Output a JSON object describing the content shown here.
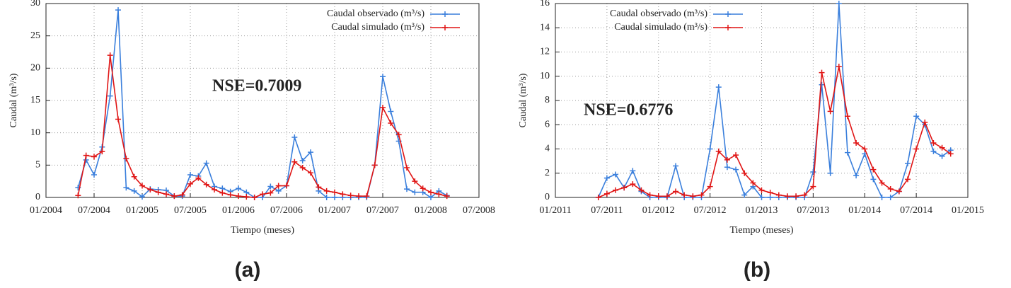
{
  "chart_data": [
    {
      "type": "line",
      "panel_label": "(a)",
      "annotation": "NSE=0.7009",
      "xlabel": "Tiempo (meses)",
      "ylabel": "Caudal (m³/s)",
      "xlim": [
        "01/2004",
        "07/2008"
      ],
      "xticks": [
        "01/2004",
        "07/2004",
        "01/2005",
        "07/2005",
        "01/2006",
        "07/2006",
        "01/2007",
        "07/2007",
        "01/2008",
        "07/2008"
      ],
      "ylim": [
        0,
        30
      ],
      "yticks": [
        0,
        5,
        10,
        15,
        20,
        25,
        30
      ],
      "grid": true,
      "legend": "top-right",
      "x": [
        "05/2004",
        "06/2004",
        "07/2004",
        "08/2004",
        "09/2004",
        "10/2004",
        "11/2004",
        "12/2004",
        "01/2005",
        "02/2005",
        "03/2005",
        "04/2005",
        "05/2005",
        "06/2005",
        "07/2005",
        "08/2005",
        "09/2005",
        "10/2005",
        "11/2005",
        "12/2005",
        "01/2006",
        "02/2006",
        "03/2006",
        "04/2006",
        "05/2006",
        "06/2006",
        "07/2006",
        "08/2006",
        "09/2006",
        "10/2006",
        "11/2006",
        "12/2006",
        "01/2007",
        "02/2007",
        "03/2007",
        "04/2007",
        "05/2007",
        "06/2007",
        "07/2007",
        "08/2007",
        "09/2007",
        "10/2007",
        "11/2007",
        "12/2007",
        "01/2008",
        "02/2008",
        "03/2008"
      ],
      "series": [
        {
          "name": "Caudal observado (m³/s)",
          "color": "#3a7fdc",
          "values": [
            1.5,
            5.8,
            3.5,
            7.8,
            15.7,
            29,
            1.5,
            1.0,
            0.1,
            1.3,
            1.2,
            1.1,
            0.2,
            0.2,
            3.5,
            3.3,
            5.3,
            1.7,
            1.4,
            0.9,
            1.4,
            0.8,
            0,
            0,
            1.7,
            1.0,
            1.8,
            9.3,
            5.7,
            7.0,
            1.0,
            0,
            0,
            0,
            0,
            0,
            0,
            5.0,
            18.7,
            13.3,
            8.7,
            1.3,
            0.8,
            0.8,
            0,
            1.0,
            0.3
          ]
        },
        {
          "name": "Caudal simulado (m³/s)",
          "color": "#e01515",
          "values": [
            0.3,
            6.5,
            6.3,
            7.1,
            22,
            12.1,
            6.0,
            3.2,
            1.8,
            1.2,
            0.8,
            0.5,
            0.2,
            0.4,
            2.1,
            3.0,
            2.0,
            1.2,
            0.7,
            0.4,
            0.2,
            0.1,
            0,
            0.5,
            0.7,
            1.8,
            1.8,
            5.5,
            4.6,
            3.8,
            1.6,
            1.0,
            0.8,
            0.5,
            0.3,
            0.2,
            0.2,
            5.0,
            13.9,
            11.5,
            9.7,
            4.6,
            2.5,
            1.4,
            0.8,
            0.5,
            0.2
          ]
        }
      ]
    },
    {
      "type": "line",
      "panel_label": "(b)",
      "annotation": "NSE=0.6776",
      "xlabel": "Tiempo (meses)",
      "ylabel": "Caudal (m³/s)",
      "xlim": [
        "01/2011",
        "01/2015"
      ],
      "xticks": [
        "01/2011",
        "07/2011",
        "01/2012",
        "07/2012",
        "01/2013",
        "07/2013",
        "01/2014",
        "07/2014",
        "01/2015"
      ],
      "ylim": [
        0,
        16
      ],
      "yticks": [
        0,
        2,
        4,
        6,
        8,
        10,
        12,
        14,
        16
      ],
      "grid": true,
      "legend": "top-left",
      "x": [
        "06/2011",
        "07/2011",
        "08/2011",
        "09/2011",
        "10/2011",
        "11/2011",
        "12/2011",
        "01/2012",
        "02/2012",
        "03/2012",
        "04/2012",
        "05/2012",
        "06/2012",
        "07/2012",
        "08/2012",
        "09/2012",
        "10/2012",
        "11/2012",
        "12/2012",
        "01/2013",
        "02/2013",
        "03/2013",
        "04/2013",
        "05/2013",
        "06/2013",
        "07/2013",
        "08/2013",
        "09/2013",
        "10/2013",
        "11/2013",
        "12/2013",
        "01/2014",
        "02/2014",
        "03/2014",
        "04/2014",
        "05/2014",
        "06/2014",
        "07/2014",
        "08/2014",
        "09/2014",
        "10/2014",
        "11/2014"
      ],
      "series": [
        {
          "name": "Caudal observado (m³/s)",
          "color": "#3a7fdc",
          "values": [
            0,
            1.6,
            1.9,
            0.8,
            2.2,
            0.5,
            0,
            0,
            0,
            2.6,
            0,
            0,
            0,
            4.0,
            9.1,
            2.5,
            2.3,
            0.2,
            0.9,
            0,
            0,
            0,
            0,
            0,
            0,
            2.1,
            9.3,
            2.0,
            16,
            3.7,
            1.8,
            3.6,
            1.5,
            0,
            0,
            0.5,
            2.8,
            6.7,
            6.0,
            3.8,
            3.4,
            3.9
          ]
        },
        {
          "name": "Caudal simulado (m³/s)",
          "color": "#e01515",
          "values": [
            0,
            0.3,
            0.6,
            0.8,
            1.1,
            0.6,
            0.2,
            0.1,
            0.1,
            0.5,
            0.2,
            0.1,
            0.2,
            0.9,
            3.8,
            3.1,
            3.5,
            2.0,
            1.2,
            0.6,
            0.4,
            0.2,
            0.1,
            0.1,
            0.2,
            0.9,
            10.3,
            7.1,
            10.8,
            6.7,
            4.5,
            4.0,
            2.3,
            1.2,
            0.7,
            0.5,
            1.5,
            4.0,
            6.2,
            4.5,
            4.1,
            3.6
          ]
        }
      ]
    }
  ]
}
